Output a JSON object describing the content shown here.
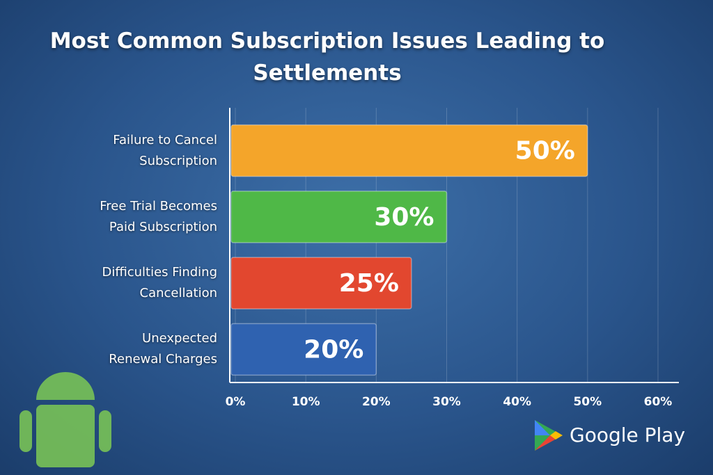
{
  "chart_data": {
    "type": "barh",
    "title": "Most Common Subscription Issues Leading to Settlements",
    "categories": [
      "Failure to Cancel\nSubscription",
      "Free Trial Becomes\nPaid Subscription",
      "Difficulties Finding\nCancellation",
      "Unexpected\nRenewal Charges"
    ],
    "values": [
      50,
      30,
      25,
      20
    ],
    "value_labels": [
      "50%",
      "30%",
      "25%",
      "20%"
    ],
    "colors": [
      "#f4a52a",
      "#4fb847",
      "#e2472f",
      "#2f62b0"
    ],
    "xlim": [
      0,
      60
    ],
    "xticks": [
      {
        "value": 0,
        "label": "0%"
      },
      {
        "value": 10,
        "label": "10%"
      },
      {
        "value": 20,
        "label": "20%"
      },
      {
        "value": 30,
        "label": "30%"
      },
      {
        "value": 40,
        "label": "40%"
      },
      {
        "value": 50,
        "label": "50%"
      },
      {
        "value": 60,
        "label": "60%"
      }
    ],
    "grid": true,
    "logo": "Google Play"
  }
}
